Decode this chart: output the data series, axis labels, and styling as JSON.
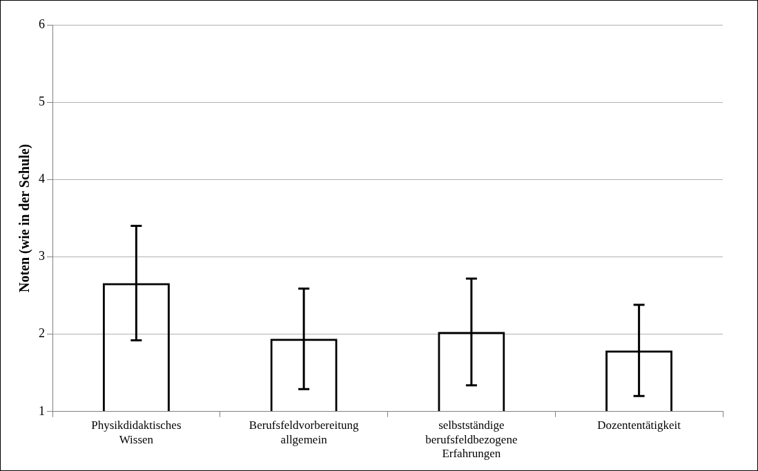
{
  "chart_data": {
    "type": "bar",
    "ylabel": "Noten (wie in der Schule)",
    "categories": [
      "Physikdidaktisches Wissen",
      "Berufsfeldvorbereitung allgemein",
      "selbstständige berufsfeldbezogene Erfahrungen",
      "Dozententätigkeit"
    ],
    "values": [
      2.66,
      1.94,
      2.03,
      1.79
    ],
    "errors": [
      0.74,
      0.65,
      0.69,
      0.59
    ],
    "color": "#000000",
    "ylim": [
      1,
      6
    ],
    "yticks": [
      1,
      2,
      3,
      4,
      5,
      6
    ],
    "grid": "y",
    "legend": false
  }
}
